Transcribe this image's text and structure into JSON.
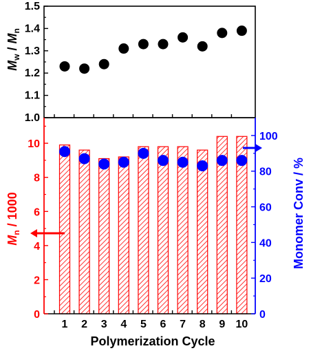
{
  "chart_data": [
    {
      "type": "scatter",
      "categories": [
        "1",
        "2",
        "3",
        "4",
        "5",
        "6",
        "7",
        "8",
        "9",
        "10"
      ],
      "series": [
        {
          "values": [
            1.23,
            1.22,
            1.24,
            1.31,
            1.33,
            1.33,
            1.36,
            1.32,
            1.38,
            1.39
          ]
        }
      ],
      "ylabel_parts": {
        "a": "M",
        "a_sub": "w",
        "sep": " / ",
        "b": "M",
        "b_sub": "n"
      },
      "ylim": [
        1.0,
        1.5
      ],
      "yticks": [
        "1.0",
        "1.1",
        "1.2",
        "1.3",
        "1.4",
        "1.5"
      ],
      "color": "#000000"
    },
    {
      "type": "bar",
      "categories": [
        "1",
        "2",
        "3",
        "4",
        "5",
        "6",
        "7",
        "8",
        "9",
        "10"
      ],
      "xlabel": "Polymerization Cycle",
      "left_axis": {
        "label_parts": {
          "a": "M",
          "a_sub": "n",
          "rest": " / 1000"
        },
        "ylim": [
          0,
          11.5
        ],
        "yticks": [
          "0",
          "2",
          "4",
          "6",
          "8",
          "10"
        ],
        "color": "#ff0000"
      },
      "right_axis": {
        "label": "Monomer Conv / %",
        "ylim": [
          0,
          110
        ],
        "yticks": [
          "0",
          "20",
          "40",
          "60",
          "80",
          "100"
        ],
        "color": "#0000ff"
      },
      "bars": {
        "axis": "left",
        "values": [
          9.9,
          9.6,
          9.1,
          9.2,
          9.8,
          9.8,
          9.8,
          9.6,
          10.4,
          10.4
        ],
        "color": "#ff0000"
      },
      "points": {
        "axis": "right",
        "values": [
          91,
          87,
          84,
          85,
          90,
          86,
          85,
          83,
          86,
          86
        ],
        "color": "#0000ff"
      }
    }
  ]
}
